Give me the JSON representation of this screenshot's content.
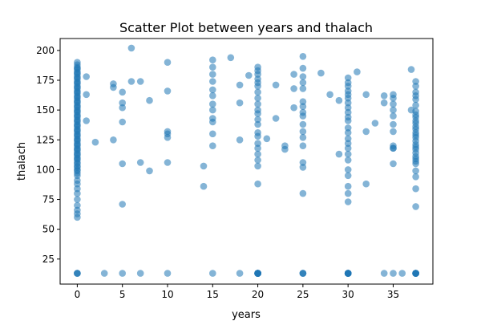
{
  "chart_data": {
    "type": "scatter",
    "title": "Scatter Plot between years and thalach",
    "xlabel": "years",
    "ylabel": "thalach",
    "xlim": [
      -1.9,
      39.4
    ],
    "ylim": [
      4,
      210
    ],
    "xticks": [
      "0",
      "5",
      "10",
      "15",
      "20",
      "25",
      "30",
      "35"
    ],
    "yticks": [
      "25",
      "50",
      "75",
      "100",
      "125",
      "150",
      "175",
      "200"
    ],
    "grid": false,
    "marker_color": "#1f77b4",
    "marker_alpha": 0.55,
    "series": [
      {
        "x": [
          0,
          0,
          0,
          0,
          0,
          0,
          0,
          0,
          0,
          0,
          0,
          0,
          0,
          0,
          0,
          0,
          0,
          0,
          0,
          0,
          0,
          0,
          0,
          0,
          0,
          0,
          0,
          0,
          0,
          0,
          0,
          0,
          0,
          0,
          0,
          0,
          0,
          0,
          0,
          0,
          0,
          0,
          0,
          0,
          0,
          0,
          0,
          0,
          0,
          0,
          0,
          0,
          0,
          0,
          0,
          0,
          0,
          0,
          0,
          0,
          0,
          0,
          0,
          0,
          0,
          0,
          0,
          0,
          0,
          0,
          0,
          0,
          0,
          0,
          0,
          0,
          0,
          0,
          0,
          0,
          0,
          0,
          1,
          1,
          1,
          2,
          3,
          4,
          4,
          4,
          5,
          5,
          5,
          5,
          5,
          5,
          5,
          6,
          6,
          7,
          7,
          7,
          8,
          8,
          10,
          10,
          10,
          10,
          10,
          10,
          10,
          14,
          14,
          15,
          15,
          15,
          15,
          15,
          15,
          15,
          15,
          15,
          15,
          15,
          15,
          15,
          17,
          18,
          18,
          18,
          18,
          19,
          20,
          20,
          20,
          20,
          20,
          20,
          20,
          20,
          20,
          20,
          20,
          20,
          20,
          20,
          20,
          20,
          20,
          20,
          20,
          20,
          20,
          20,
          20,
          20,
          20,
          20,
          20,
          20,
          20,
          20,
          21,
          22,
          22,
          23,
          23,
          24,
          24,
          24,
          25,
          25,
          25,
          25,
          25,
          25,
          25,
          25,
          25,
          25,
          25,
          25,
          25,
          25,
          25,
          25,
          25,
          25,
          25,
          27,
          28,
          29,
          29,
          30,
          30,
          30,
          30,
          30,
          30,
          30,
          30,
          30,
          30,
          30,
          30,
          30,
          30,
          30,
          30,
          30,
          30,
          30,
          30,
          30,
          30,
          30,
          30,
          30,
          30,
          30,
          30,
          30,
          30,
          31,
          32,
          32,
          32,
          33,
          34,
          34,
          34,
          35,
          35,
          35,
          35,
          35,
          35,
          35,
          35,
          35,
          35,
          35,
          35,
          36,
          37,
          37,
          37.5,
          37.5,
          37.5,
          37.5,
          37.5,
          37.5,
          37.5,
          37.5,
          37.5,
          37.5,
          37.5,
          37.5,
          37.5,
          37.5,
          37.5,
          37.5,
          37.5,
          37.5,
          37.5,
          37.5,
          37.5,
          37.5,
          37.5,
          37.5,
          37.5,
          37.5,
          37.5,
          37.5,
          37.5,
          37.5,
          37.5,
          37.5,
          37.5,
          37.5,
          37.5
        ],
        "y": [
          13,
          60,
          63,
          66,
          70,
          75,
          80,
          84,
          88,
          91,
          95,
          97,
          100,
          103,
          106,
          108,
          110,
          112,
          114,
          116,
          118,
          120,
          122,
          124,
          126,
          128,
          130,
          132,
          134,
          136,
          138,
          140,
          142,
          144,
          146,
          148,
          150,
          152,
          154,
          156,
          158,
          160,
          162,
          164,
          166,
          168,
          170,
          172,
          174,
          176,
          178,
          180,
          182,
          184,
          186,
          188,
          190,
          99,
          102,
          105,
          109,
          113,
          117,
          121,
          125,
          129,
          133,
          137,
          141,
          145,
          149,
          153,
          157,
          161,
          165,
          169,
          173,
          177,
          181,
          185,
          13,
          13,
          178,
          163,
          141,
          123,
          13,
          125,
          169,
          172,
          71,
          105,
          140,
          152,
          156,
          165,
          13,
          174,
          202,
          13,
          106,
          174,
          99,
          158,
          13,
          106,
          127,
          130,
          132,
          166,
          190,
          86,
          103,
          13,
          120,
          130,
          140,
          143,
          150,
          155,
          162,
          167,
          174,
          180,
          186,
          192,
          194,
          13,
          125,
          156,
          171,
          179,
          13,
          88,
          103,
          108,
          113,
          118,
          122,
          128,
          131,
          138,
          142,
          147,
          150,
          155,
          160,
          165,
          170,
          173,
          176,
          180,
          183,
          186,
          13,
          13,
          13,
          13,
          13,
          13,
          13,
          13,
          126,
          143,
          171,
          117,
          120,
          152,
          168,
          180,
          185,
          13,
          80,
          102,
          106,
          120,
          127,
          132,
          138,
          145,
          148,
          153,
          157,
          168,
          173,
          178,
          195,
          13,
          13,
          181,
          163,
          113,
          158,
          13,
          73,
          80,
          86,
          95,
          100,
          108,
          113,
          118,
          122,
          126,
          131,
          135,
          141,
          144,
          148,
          152,
          156,
          160,
          163,
          166,
          170,
          173,
          177,
          13,
          13,
          13,
          13,
          13,
          13,
          182,
          88,
          132,
          163,
          139,
          156,
          162,
          13,
          105,
          118,
          120,
          132,
          138,
          145,
          150,
          155,
          160,
          163,
          13,
          118,
          13,
          184,
          150,
          13,
          13,
          13,
          13,
          13,
          13,
          69,
          84,
          94,
          99,
          105,
          109,
          114,
          119,
          124,
          129,
          134,
          139,
          144,
          149,
          154,
          159,
          162,
          165,
          170,
          174,
          107,
          111,
          117,
          121,
          127,
          131,
          136,
          141,
          146
        ]
      }
    ]
  }
}
